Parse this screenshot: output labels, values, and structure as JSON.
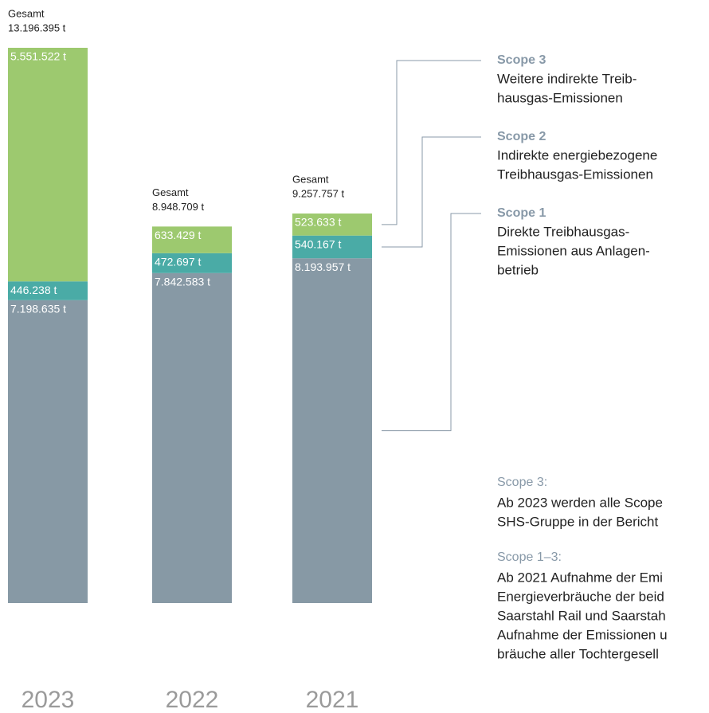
{
  "chart_data": {
    "type": "stacked_bar",
    "categories": [
      "2023",
      "2022",
      "2021"
    ],
    "total_title": "Gesamt",
    "totals": [
      13196395,
      8948709,
      9257757
    ],
    "total_labels": [
      "13.196.395 t",
      "8.948.709 t",
      "9.257.757 t"
    ],
    "series": [
      {
        "name": "Scope 1",
        "color": "#8799a5",
        "description": [
          "Direkte Treibhausgas-",
          "Emissionen aus Anlagen-",
          "betrieb"
        ],
        "values": [
          7198635,
          7842583,
          8193957
        ],
        "value_labels": [
          "7.198.635 t",
          "7.842.583 t",
          "8.193.957 t"
        ]
      },
      {
        "name": "Scope 2",
        "color": "#4aaba6",
        "description": [
          "Indirekte energiebezogene",
          "Treibhausgas-Emissionen"
        ],
        "values": [
          446238,
          472697,
          540167
        ],
        "value_labels": [
          "446.238 t",
          "472.697 t",
          "540.167 t"
        ]
      },
      {
        "name": "Scope 3",
        "color": "#9dc96f",
        "description": [
          "Weitere indirekte Treib-",
          "hausgas-Emissionen"
        ],
        "values": [
          5551522,
          633429,
          523633
        ],
        "value_labels": [
          "5.551.522 t",
          "633.429 t",
          "523.633 t"
        ]
      }
    ],
    "notes": [
      {
        "title": "Scope 3:",
        "lines": [
          "Ab 2023 werden alle Scope",
          "SHS-Gruppe in der Bericht"
        ]
      },
      {
        "title": "Scope 1–3:",
        "lines": [
          "Ab 2021 Aufnahme der Emi",
          "Energieverbräuche der beid",
          "Saarstahl Rail und Saarstah",
          "Aufnahme der Emissionen u",
          "bräuche aller Tochtergesell"
        ]
      }
    ]
  }
}
